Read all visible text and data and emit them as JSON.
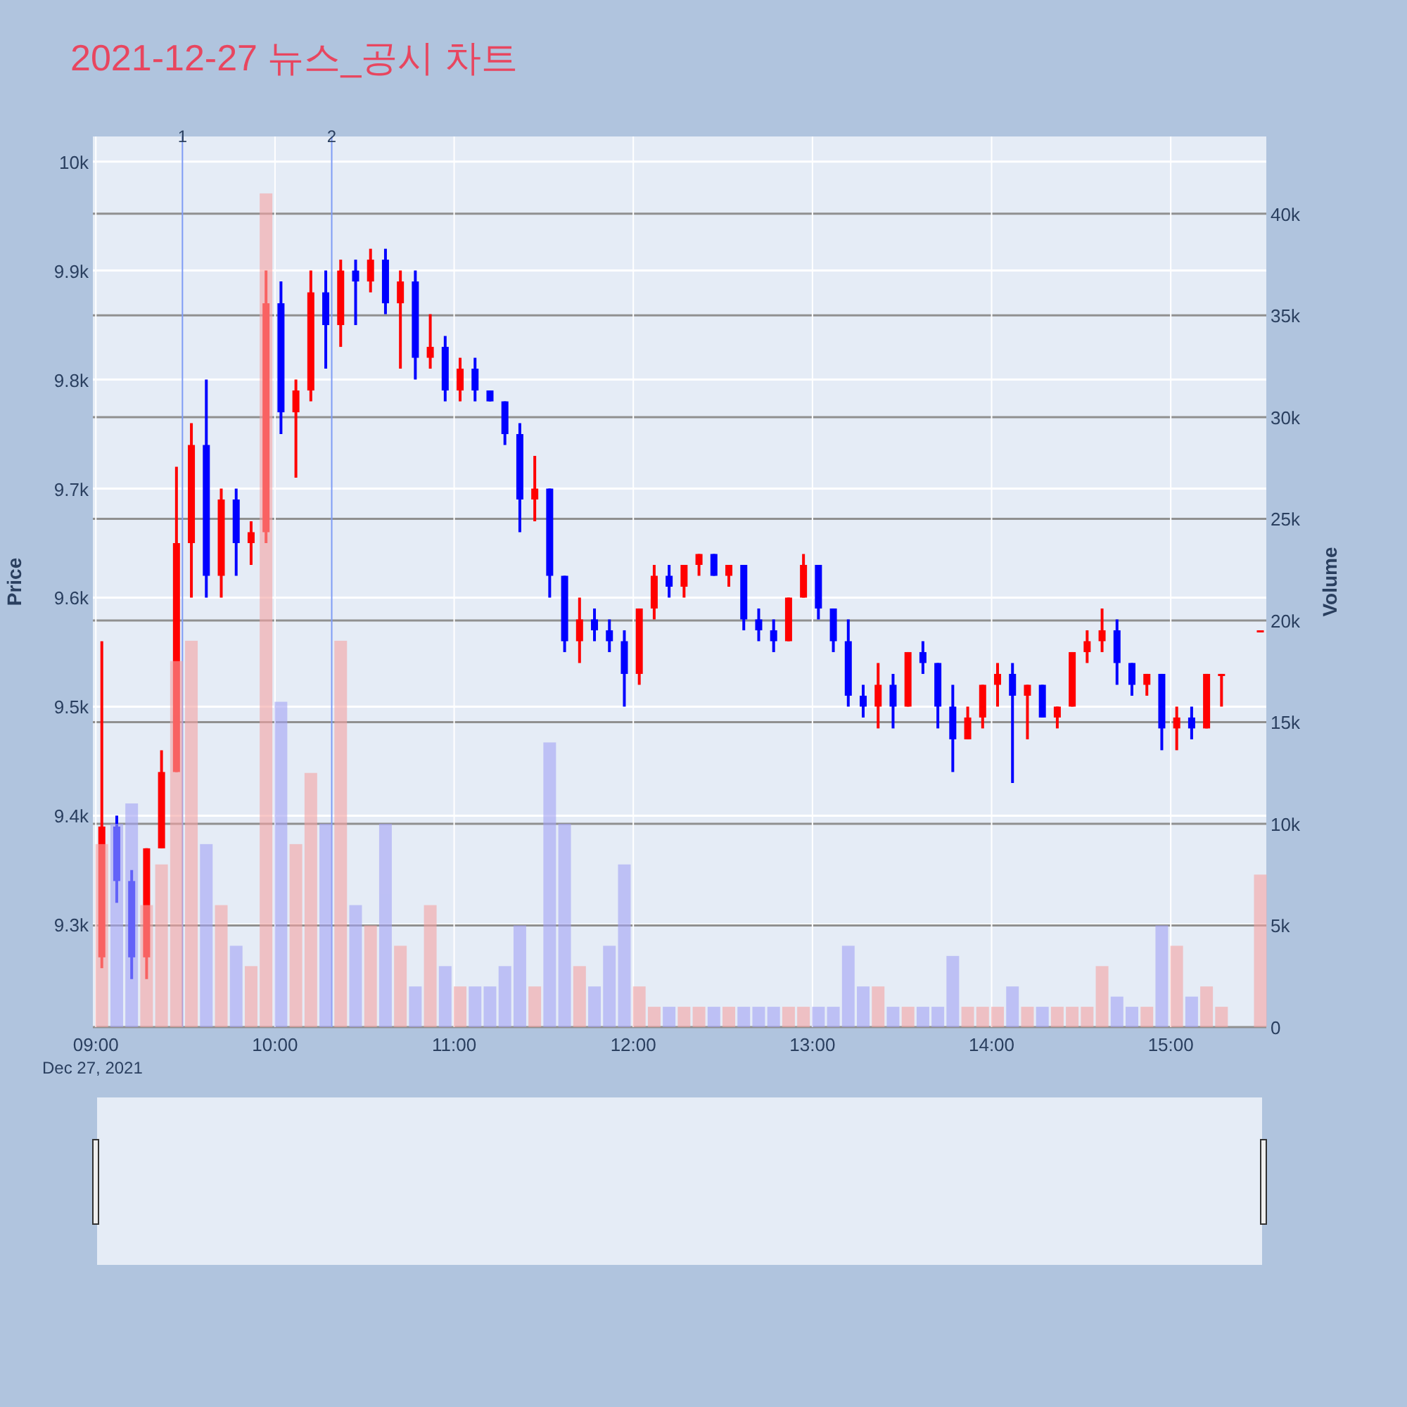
{
  "chart_data": {
    "type": "candlestick",
    "title": "2021-12-27 뉴스_공시 차트",
    "ylabel": "Price",
    "y2label": "Volume",
    "annotations": [
      "Dec 27, 2021"
    ],
    "x": [
      "2021-12-27T09:02",
      "2021-12-27T09:07",
      "2021-12-27T09:12",
      "2021-12-27T09:17",
      "2021-12-27T09:22",
      "2021-12-27T09:27",
      "2021-12-27T09:32",
      "2021-12-27T09:37",
      "2021-12-27T09:42",
      "2021-12-27T09:47",
      "2021-12-27T09:52",
      "2021-12-27T09:57",
      "2021-12-27T10:02",
      "2021-12-27T10:07",
      "2021-12-27T10:12",
      "2021-12-27T10:17",
      "2021-12-27T10:22",
      "2021-12-27T10:27",
      "2021-12-27T10:32",
      "2021-12-27T10:37",
      "2021-12-27T10:42",
      "2021-12-27T10:47",
      "2021-12-27T10:52",
      "2021-12-27T10:57",
      "2021-12-27T11:02",
      "2021-12-27T11:07",
      "2021-12-27T11:12",
      "2021-12-27T11:17",
      "2021-12-27T11:22",
      "2021-12-27T11:27",
      "2021-12-27T11:32",
      "2021-12-27T11:37",
      "2021-12-27T11:42",
      "2021-12-27T11:47",
      "2021-12-27T11:52",
      "2021-12-27T11:57",
      "2021-12-27T12:02",
      "2021-12-27T12:07",
      "2021-12-27T12:12",
      "2021-12-27T12:17",
      "2021-12-27T12:22",
      "2021-12-27T12:27",
      "2021-12-27T12:32",
      "2021-12-27T12:37",
      "2021-12-27T12:42",
      "2021-12-27T12:47",
      "2021-12-27T12:52",
      "2021-12-27T12:57",
      "2021-12-27T13:02",
      "2021-12-27T13:07",
      "2021-12-27T13:12",
      "2021-12-27T13:17",
      "2021-12-27T13:22",
      "2021-12-27T13:27",
      "2021-12-27T13:32",
      "2021-12-27T13:37",
      "2021-12-27T13:42",
      "2021-12-27T13:47",
      "2021-12-27T13:52",
      "2021-12-27T13:57",
      "2021-12-27T14:02",
      "2021-12-27T14:07",
      "2021-12-27T14:12",
      "2021-12-27T14:17",
      "2021-12-27T14:22",
      "2021-12-27T14:27",
      "2021-12-27T14:32",
      "2021-12-27T14:37",
      "2021-12-27T14:42",
      "2021-12-27T14:47",
      "2021-12-27T14:52",
      "2021-12-27T14:57",
      "2021-12-27T15:02",
      "2021-12-27T15:07",
      "2021-12-27T15:12",
      "2021-12-27T15:17",
      "2021-12-27T15:30"
    ],
    "ohlc": [
      [
        9270,
        9560,
        9260,
        9390
      ],
      [
        9390,
        9400,
        9320,
        9340
      ],
      [
        9340,
        9350,
        9250,
        9270
      ],
      [
        9270,
        9370,
        9250,
        9370
      ],
      [
        9370,
        9460,
        9370,
        9440
      ],
      [
        9440,
        9720,
        9440,
        9650
      ],
      [
        9650,
        9760,
        9600,
        9740
      ],
      [
        9740,
        9800,
        9600,
        9620
      ],
      [
        9620,
        9700,
        9600,
        9690
      ],
      [
        9690,
        9700,
        9620,
        9650
      ],
      [
        9650,
        9670,
        9630,
        9660
      ],
      [
        9660,
        9900,
        9650,
        9870
      ],
      [
        9870,
        9890,
        9750,
        9770
      ],
      [
        9770,
        9800,
        9710,
        9790
      ],
      [
        9790,
        9900,
        9780,
        9880
      ],
      [
        9880,
        9900,
        9810,
        9850
      ],
      [
        9850,
        9910,
        9830,
        9900
      ],
      [
        9900,
        9910,
        9850,
        9890
      ],
      [
        9890,
        9920,
        9880,
        9910
      ],
      [
        9910,
        9920,
        9860,
        9870
      ],
      [
        9870,
        9900,
        9810,
        9890
      ],
      [
        9890,
        9900,
        9800,
        9820
      ],
      [
        9820,
        9860,
        9810,
        9830
      ],
      [
        9830,
        9840,
        9780,
        9790
      ],
      [
        9790,
        9820,
        9780,
        9810
      ],
      [
        9810,
        9820,
        9780,
        9790
      ],
      [
        9790,
        9790,
        9780,
        9780
      ],
      [
        9780,
        9780,
        9740,
        9750
      ],
      [
        9750,
        9760,
        9660,
        9690
      ],
      [
        9690,
        9730,
        9670,
        9700
      ],
      [
        9700,
        9700,
        9600,
        9620
      ],
      [
        9620,
        9620,
        9550,
        9560
      ],
      [
        9560,
        9600,
        9540,
        9580
      ],
      [
        9580,
        9590,
        9560,
        9570
      ],
      [
        9570,
        9580,
        9550,
        9560
      ],
      [
        9560,
        9570,
        9500,
        9530
      ],
      [
        9530,
        9590,
        9520,
        9590
      ],
      [
        9590,
        9630,
        9580,
        9620
      ],
      [
        9620,
        9630,
        9600,
        9610
      ],
      [
        9610,
        9630,
        9600,
        9630
      ],
      [
        9630,
        9640,
        9620,
        9640
      ],
      [
        9640,
        9640,
        9620,
        9620
      ],
      [
        9620,
        9630,
        9610,
        9630
      ],
      [
        9630,
        9630,
        9570,
        9580
      ],
      [
        9580,
        9590,
        9560,
        9570
      ],
      [
        9570,
        9580,
        9550,
        9560
      ],
      [
        9560,
        9600,
        9560,
        9600
      ],
      [
        9600,
        9640,
        9600,
        9630
      ],
      [
        9630,
        9630,
        9580,
        9590
      ],
      [
        9590,
        9590,
        9550,
        9560
      ],
      [
        9560,
        9580,
        9500,
        9510
      ],
      [
        9510,
        9520,
        9490,
        9500
      ],
      [
        9500,
        9540,
        9480,
        9520
      ],
      [
        9520,
        9530,
        9480,
        9500
      ],
      [
        9500,
        9550,
        9500,
        9550
      ],
      [
        9550,
        9560,
        9530,
        9540
      ],
      [
        9540,
        9540,
        9480,
        9500
      ],
      [
        9500,
        9520,
        9440,
        9470
      ],
      [
        9470,
        9500,
        9470,
        9490
      ],
      [
        9490,
        9520,
        9480,
        9520
      ],
      [
        9520,
        9540,
        9500,
        9530
      ],
      [
        9530,
        9540,
        9430,
        9510
      ],
      [
        9510,
        9520,
        9470,
        9520
      ],
      [
        9520,
        9520,
        9490,
        9490
      ],
      [
        9490,
        9500,
        9480,
        9500
      ],
      [
        9500,
        9550,
        9500,
        9550
      ],
      [
        9550,
        9570,
        9540,
        9560
      ],
      [
        9560,
        9590,
        9550,
        9570
      ],
      [
        9570,
        9580,
        9520,
        9540
      ],
      [
        9540,
        9540,
        9510,
        9520
      ],
      [
        9520,
        9530,
        9510,
        9530
      ],
      [
        9530,
        9530,
        9460,
        9480
      ],
      [
        9480,
        9500,
        9460,
        9490
      ],
      [
        9490,
        9500,
        9470,
        9480
      ],
      [
        9480,
        9530,
        9480,
        9530
      ],
      [
        9530,
        9530,
        9500,
        9530
      ],
      [
        9570,
        9570,
        9570,
        9570
      ]
    ],
    "colors": [
      "#ff0000",
      "#0000ff",
      "#0000ff",
      "#ff0000",
      "#ff0000",
      "#ff0000",
      "#ff0000",
      "#0000ff",
      "#ff0000",
      "#0000ff",
      "#ff0000",
      "#ff0000",
      "#0000ff",
      "#ff0000",
      "#ff0000",
      "#0000ff",
      "#ff0000",
      "#0000ff",
      "#ff0000",
      "#0000ff",
      "#ff0000",
      "#0000ff",
      "#ff0000",
      "#0000ff",
      "#ff0000",
      "#0000ff",
      "#0000ff",
      "#0000ff",
      "#0000ff",
      "#ff0000",
      "#0000ff",
      "#0000ff",
      "#ff0000",
      "#0000ff",
      "#0000ff",
      "#0000ff",
      "#ff0000",
      "#ff0000",
      "#0000ff",
      "#ff0000",
      "#ff0000",
      "#0000ff",
      "#ff0000",
      "#0000ff",
      "#0000ff",
      "#0000ff",
      "#ff0000",
      "#ff0000",
      "#0000ff",
      "#0000ff",
      "#0000ff",
      "#0000ff",
      "#ff0000",
      "#0000ff",
      "#ff0000",
      "#0000ff",
      "#0000ff",
      "#0000ff",
      "#ff0000",
      "#ff0000",
      "#ff0000",
      "#0000ff",
      "#ff0000",
      "#0000ff",
      "#ff0000",
      "#ff0000",
      "#ff0000",
      "#ff0000",
      "#0000ff",
      "#0000ff",
      "#ff0000",
      "#0000ff",
      "#ff0000",
      "#0000ff",
      "#ff0000",
      "#ff0000",
      "#ff0000"
    ],
    "series": [
      {
        "type": "bar",
        "axis": "y2",
        "values": [
          9000,
          10000,
          11000,
          6000,
          8000,
          18000,
          19000,
          9000,
          6000,
          4000,
          3000,
          41000,
          16000,
          9000,
          12500,
          10000,
          19000,
          6000,
          5000,
          10000,
          4000,
          2000,
          6000,
          3000,
          2000,
          2000,
          2000,
          3000,
          5000,
          2000,
          14000,
          10000,
          3000,
          2000,
          4000,
          8000,
          2000,
          1000,
          1000,
          1000,
          1000,
          1000,
          1000,
          1000,
          1000,
          1000,
          1000,
          1000,
          1000,
          1000,
          4000,
          2000,
          2000,
          1000,
          1000,
          1000,
          1000,
          3500,
          1000,
          1000,
          1000,
          2000,
          1000,
          1000,
          1000,
          1000,
          1000,
          3000,
          1500,
          1000,
          1000,
          5000,
          4000,
          1500,
          2000,
          1000,
          7500
        ],
        "colors": [
          "#f5a3a3",
          "#a3a3f5",
          "#a3a3f5",
          "#f5a3a3",
          "#f5a3a3",
          "#f5a3a3",
          "#f5a3a3",
          "#a3a3f5",
          "#f5a3a3",
          "#a3a3f5",
          "#f5a3a3",
          "#f5a3a3",
          "#a3a3f5",
          "#f5a3a3",
          "#f5a3a3",
          "#a3a3f5",
          "#f5a3a3",
          "#a3a3f5",
          "#f5a3a3",
          "#a3a3f5",
          "#f5a3a3",
          "#a3a3f5",
          "#f5a3a3",
          "#a3a3f5",
          "#f5a3a3",
          "#a3a3f5",
          "#a3a3f5",
          "#a3a3f5",
          "#a3a3f5",
          "#f5a3a3",
          "#a3a3f5",
          "#a3a3f5",
          "#f5a3a3",
          "#a3a3f5",
          "#a3a3f5",
          "#a3a3f5",
          "#f5a3a3",
          "#f5a3a3",
          "#a3a3f5",
          "#f5a3a3",
          "#f5a3a3",
          "#a3a3f5",
          "#f5a3a3",
          "#a3a3f5",
          "#a3a3f5",
          "#a3a3f5",
          "#f5a3a3",
          "#f5a3a3",
          "#a3a3f5",
          "#a3a3f5",
          "#a3a3f5",
          "#a3a3f5",
          "#f5a3a3",
          "#a3a3f5",
          "#f5a3a3",
          "#a3a3f5",
          "#a3a3f5",
          "#a3a3f5",
          "#f5a3a3",
          "#f5a3a3",
          "#f5a3a3",
          "#a3a3f5",
          "#f5a3a3",
          "#a3a3f5",
          "#f5a3a3",
          "#f5a3a3",
          "#f5a3a3",
          "#f5a3a3",
          "#a3a3f5",
          "#a3a3f5",
          "#f5a3a3",
          "#a3a3f5",
          "#f5a3a3",
          "#a3a3f5",
          "#f5a3a3",
          "#f5a3a3",
          "#f5a3a3"
        ]
      }
    ],
    "xlim": [
      "2021-12-27T08:59",
      "2021-12-27T15:32"
    ],
    "xticks": [
      {
        "value": "2021-12-27T09:00",
        "label": "09:00"
      },
      {
        "value": "2021-12-27T10:00",
        "label": "10:00"
      },
      {
        "value": "2021-12-27T11:00",
        "label": "11:00"
      },
      {
        "value": "2021-12-27T12:00",
        "label": "12:00"
      },
      {
        "value": "2021-12-27T13:00",
        "label": "13:00"
      },
      {
        "value": "2021-12-27T14:00",
        "label": "14:00"
      },
      {
        "value": "2021-12-27T15:00",
        "label": "15:00"
      }
    ],
    "ylim": [
      9206,
      10023
    ],
    "yticks": [
      {
        "value": 9300,
        "label": "9.3k"
      },
      {
        "value": 9400,
        "label": "9.4k"
      },
      {
        "value": 9500,
        "label": "9.5k"
      },
      {
        "value": 9600,
        "label": "9.6k"
      },
      {
        "value": 9700,
        "label": "9.7k"
      },
      {
        "value": 9800,
        "label": "9.8k"
      },
      {
        "value": 9900,
        "label": "9.9k"
      },
      {
        "value": 10000,
        "label": "10k"
      }
    ],
    "y2lim": [
      0,
      43800
    ],
    "y2ticks": [
      0,
      {
        "value": 5000,
        "label": "5k"
      },
      {
        "value": 10000,
        "label": "10k"
      },
      {
        "value": 15000,
        "label": "15k"
      },
      {
        "value": 20000,
        "label": "20k"
      },
      {
        "value": 25000,
        "label": "25k"
      },
      {
        "value": 30000,
        "label": "30k"
      },
      {
        "value": 35000,
        "label": "35k"
      },
      {
        "value": 40000,
        "label": "40k"
      }
    ],
    "ref_lines": [
      {
        "axis": "x",
        "value": "2021-12-27T09:29",
        "label": "1",
        "color": "#7f9cf5"
      },
      {
        "axis": "x",
        "value": "2021-12-27T10:19",
        "label": "2",
        "color": "#7f9cf5"
      }
    ],
    "grid": true
  }
}
